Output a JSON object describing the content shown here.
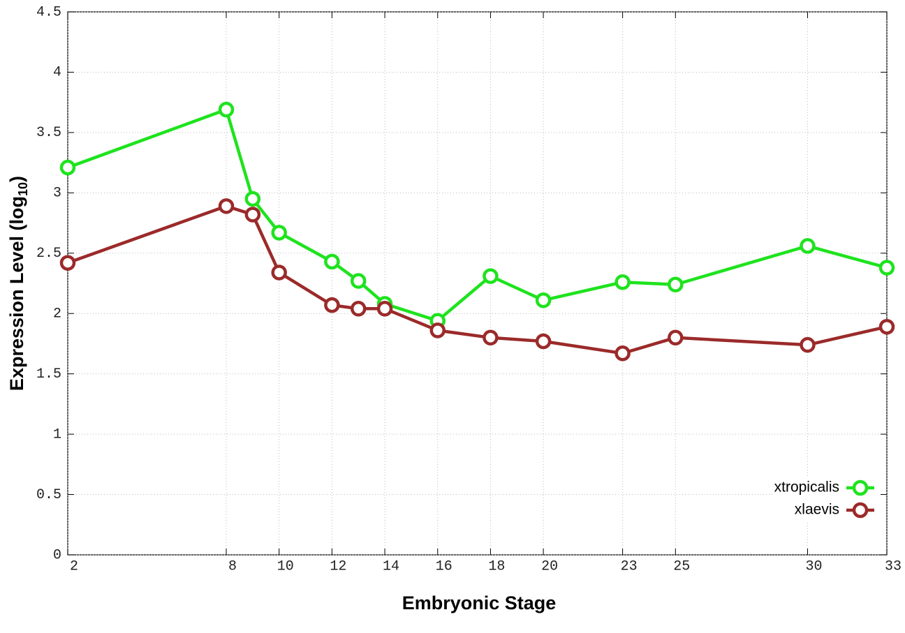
{
  "chart_data": {
    "type": "line",
    "x_label": "Embryonic Stage",
    "y_label": {
      "parts": [
        "Expression Level (log",
        "10",
        ")"
      ]
    },
    "x": [
      2,
      8,
      9,
      10,
      12,
      13,
      14,
      16,
      18,
      20,
      23,
      25,
      30,
      33
    ],
    "series": [
      {
        "name": "xtropicalis",
        "color": "#1ee31e",
        "values": [
          3.21,
          3.69,
          2.95,
          2.67,
          2.43,
          2.27,
          2.08,
          1.94,
          2.31,
          2.11,
          2.26,
          2.24,
          2.56,
          2.38
        ]
      },
      {
        "name": "xlaevis",
        "color": "#9b2a2a",
        "values": [
          2.42,
          2.89,
          2.82,
          2.34,
          2.07,
          2.04,
          2.04,
          1.86,
          1.8,
          1.77,
          1.67,
          1.8,
          1.74,
          1.89
        ]
      }
    ],
    "xlim": [
      2,
      33
    ],
    "xticks": [
      2,
      8,
      10,
      12,
      14,
      16,
      18,
      20,
      23,
      25,
      30,
      33
    ],
    "ylim": [
      0,
      4.5
    ],
    "yticks": [
      0,
      0.5,
      1,
      1.5,
      2,
      2.5,
      3,
      3.5,
      4,
      4.5
    ],
    "grid": true,
    "legend": "lower right",
    "markers": "open-circle"
  }
}
